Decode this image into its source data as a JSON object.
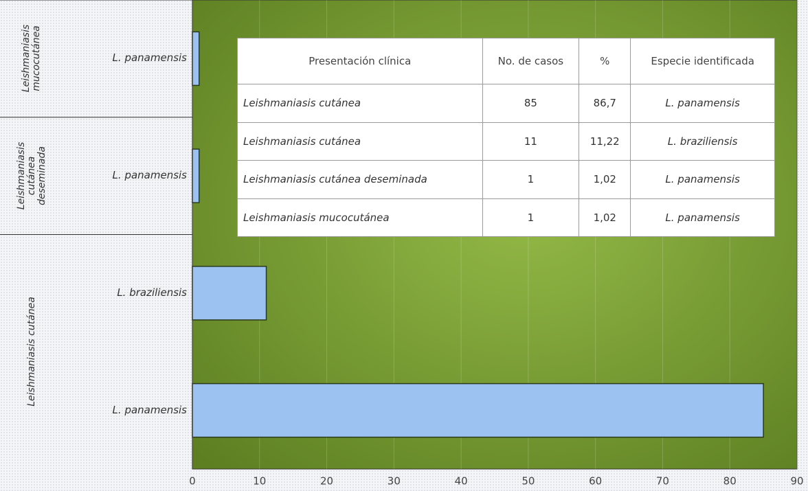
{
  "chart_data": {
    "type": "bar",
    "orientation": "horizontal",
    "groups": [
      {
        "name": "Leishmaniasis cutánea",
        "categories": [
          "L. panamensis",
          "L. braziliensis"
        ],
        "values": [
          85,
          11
        ]
      },
      {
        "name": "Leishmaniasis cutánea deseminada",
        "categories": [
          "L. panamensis"
        ],
        "values": [
          1
        ]
      },
      {
        "name": "Leishmaniasis mucocutánea",
        "categories": [
          "L. panamensis"
        ],
        "values": [
          1
        ]
      }
    ],
    "color": "#9cc2f2",
    "xlim": [
      0,
      90
    ],
    "xticks": [
      0,
      10,
      20,
      30,
      40,
      50,
      60,
      70,
      80,
      90
    ],
    "grid": true
  },
  "table": {
    "columns": [
      "Presentación clínica",
      "No. de casos",
      "%",
      "Especie identificada"
    ],
    "rows": [
      [
        "Leishmaniasis cutánea",
        "85",
        "86,7",
        "L. panamensis"
      ],
      [
        "Leishmaniasis cutánea",
        "11",
        "11,22",
        "L. braziliensis"
      ],
      [
        "Leishmaniasis cutánea deseminada",
        "1",
        "1,02",
        "L. panamensis"
      ],
      [
        "Leishmaniasis mucocutánea",
        "1",
        "1,02",
        "L. panamensis"
      ]
    ]
  }
}
